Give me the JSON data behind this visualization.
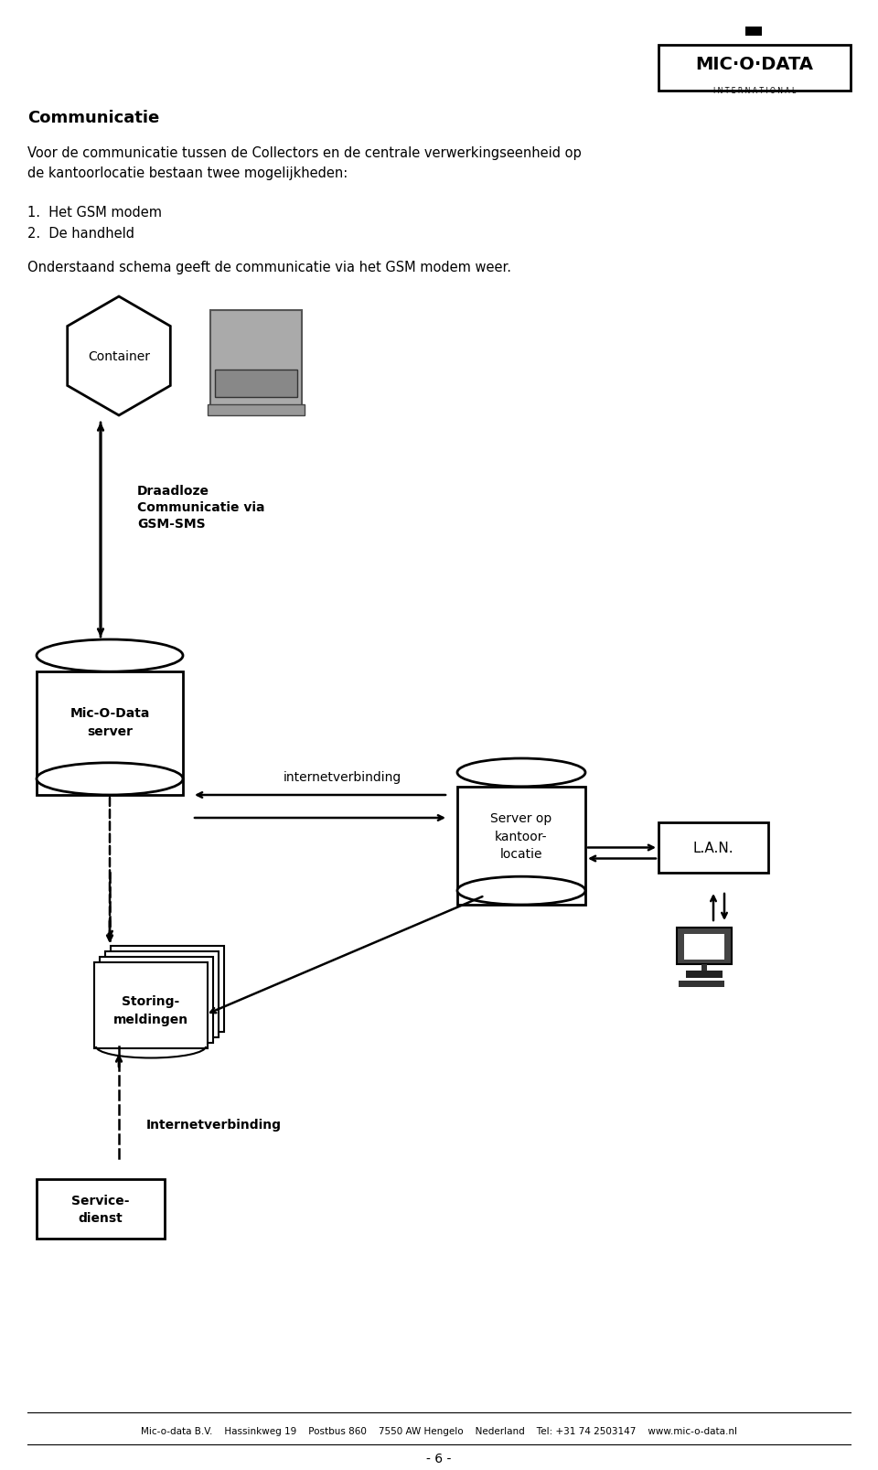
{
  "bg_color": "#ffffff",
  "text_color": "#000000",
  "title": "Communicatie",
  "body_text": "Voor de communicatie tussen de Collectors en de centrale verwerkingseenheid op\nde kantoorlocatie bestaan twee mogelijkheden:",
  "list_items": [
    "1.  Het GSM modem",
    "2.  De handheld"
  ],
  "sub_text": "Onderstaand schema geeft de communicatie via het GSM modem weer.",
  "footer_text": "Mic-o-data B.V.    Hassinkweg 19    Postbus 860    7550 AW Hengelo    Nederland    Tel: +31 74 2503147    www.mic-o-data.nl",
  "page_num": "- 6 -",
  "container_label": "Container",
  "wireless_label": "Draadloze\nCommunicatie via\nGSM-SMS",
  "server1_label": "Mic-O-Data\nserver",
  "internet_label": "internetverbinding",
  "server2_label": "Server op\nkantoor-\nlocatie",
  "lan_label": "L.A.N.",
  "storing_label": "Storing-\nmeldingen",
  "internet2_label": "Internetverbinding",
  "service_label": "Service-\ndienst"
}
